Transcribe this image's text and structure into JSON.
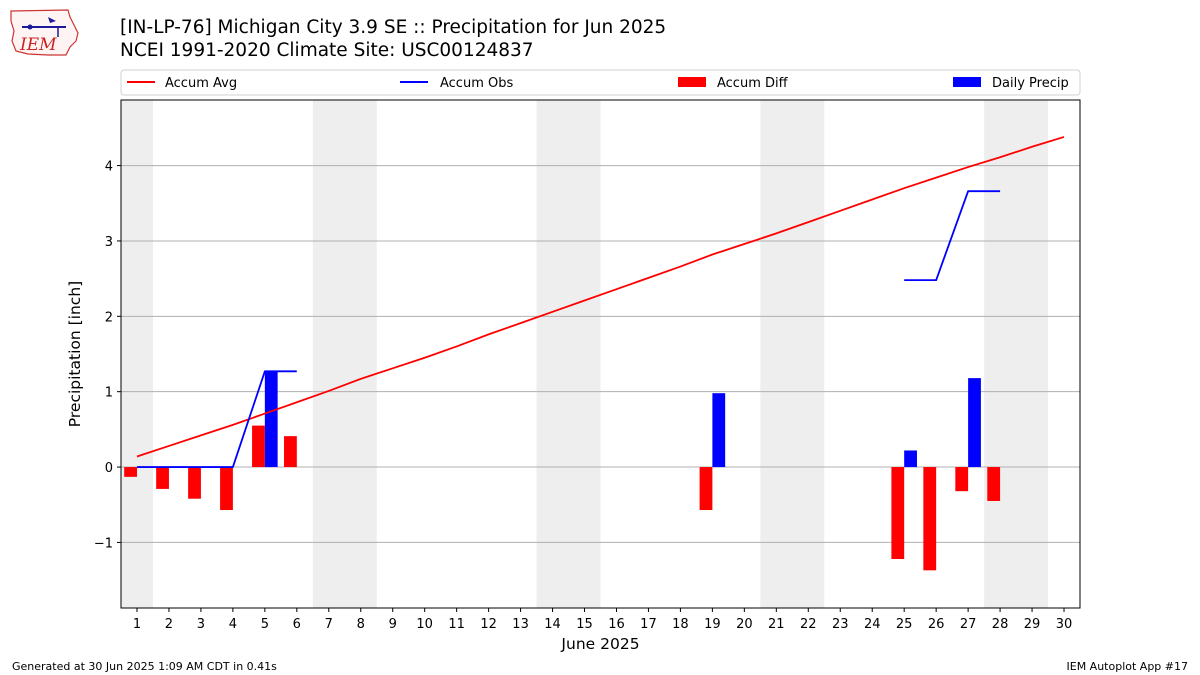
{
  "header": {
    "title_line1": "[IN-LP-76] Michigan City 3.9 SE :: Precipitation for Jun 2025",
    "title_line2": "NCEI 1991-2020 Climate Site: USC00124837",
    "logo_text": "IEM"
  },
  "footer": {
    "left": "Generated at 30 Jun 2025 1:09 AM CDT in 0.41s",
    "right": "IEM Autoplot App #17"
  },
  "colors": {
    "accum_avg": "#ff0000",
    "accum_obs": "#0000ff",
    "accum_diff": "#ff0000",
    "daily_precip": "#0000ff",
    "weekend_shade": "#eeeeee",
    "grid": "#b0b0b0"
  },
  "chart_data": {
    "type": "bar",
    "xlabel": "June 2025",
    "ylabel": "Precipitation [inch]",
    "xlim": [
      0.5,
      30.5
    ],
    "ylim": [
      -1.87,
      4.87
    ],
    "x_ticks": [
      1,
      2,
      3,
      4,
      5,
      6,
      7,
      8,
      9,
      10,
      11,
      12,
      13,
      14,
      15,
      16,
      17,
      18,
      19,
      20,
      21,
      22,
      23,
      24,
      25,
      26,
      27,
      28,
      29,
      30
    ],
    "y_ticks": [
      -1,
      0,
      1,
      2,
      3,
      4
    ],
    "y_tick_labels": [
      "−1",
      "0",
      "1",
      "2",
      "3",
      "4"
    ],
    "grid": "horizontal",
    "legend_position": "top",
    "legend": [
      {
        "label": "Accum Avg",
        "kind": "line",
        "color": "#ff0000"
      },
      {
        "label": "Accum Obs",
        "kind": "line",
        "color": "#0000ff"
      },
      {
        "label": "Accum Diff",
        "kind": "bar",
        "color": "#ff0000"
      },
      {
        "label": "Daily Precip",
        "kind": "bar",
        "color": "#0000ff"
      }
    ],
    "weekend_bands": [
      [
        0.5,
        1.5
      ],
      [
        6.5,
        8.5
      ],
      [
        13.5,
        15.5
      ],
      [
        20.5,
        22.5
      ],
      [
        27.5,
        29.5
      ]
    ],
    "series": [
      {
        "name": "Accum Avg",
        "kind": "line",
        "x": [
          1,
          2,
          3,
          4,
          5,
          6,
          7,
          8,
          9,
          10,
          11,
          12,
          13,
          14,
          15,
          16,
          17,
          18,
          19,
          20,
          21,
          22,
          23,
          24,
          25,
          26,
          27,
          28,
          29,
          30
        ],
        "values": [
          0.14,
          0.28,
          0.42,
          0.56,
          0.71,
          0.86,
          1.01,
          1.17,
          1.31,
          1.45,
          1.6,
          1.76,
          1.91,
          2.06,
          2.21,
          2.36,
          2.51,
          2.66,
          2.82,
          2.96,
          3.1,
          3.25,
          3.4,
          3.55,
          3.7,
          3.84,
          3.98,
          4.11,
          4.25,
          4.38
        ]
      },
      {
        "name": "Accum Obs",
        "kind": "line",
        "segments": [
          {
            "x": [
              1,
              2,
              3,
              4,
              5,
              6
            ],
            "values": [
              0.0,
              0.0,
              0.0,
              0.0,
              1.27,
              1.27
            ]
          },
          {
            "x": [
              25,
              26,
              27,
              28
            ],
            "values": [
              2.48,
              2.48,
              3.66,
              3.66
            ]
          }
        ]
      },
      {
        "name": "Accum Diff",
        "kind": "bar",
        "x": [
          1,
          2,
          3,
          4,
          5,
          6,
          19,
          25,
          26,
          27,
          28
        ],
        "values": [
          -0.13,
          -0.29,
          -0.42,
          -0.57,
          0.55,
          0.41,
          -0.57,
          -1.22,
          -1.37,
          -0.32,
          -0.45
        ]
      },
      {
        "name": "Daily Precip",
        "kind": "bar",
        "x": [
          5,
          19,
          25,
          27
        ],
        "values": [
          1.27,
          0.98,
          0.22,
          1.18
        ]
      }
    ]
  }
}
